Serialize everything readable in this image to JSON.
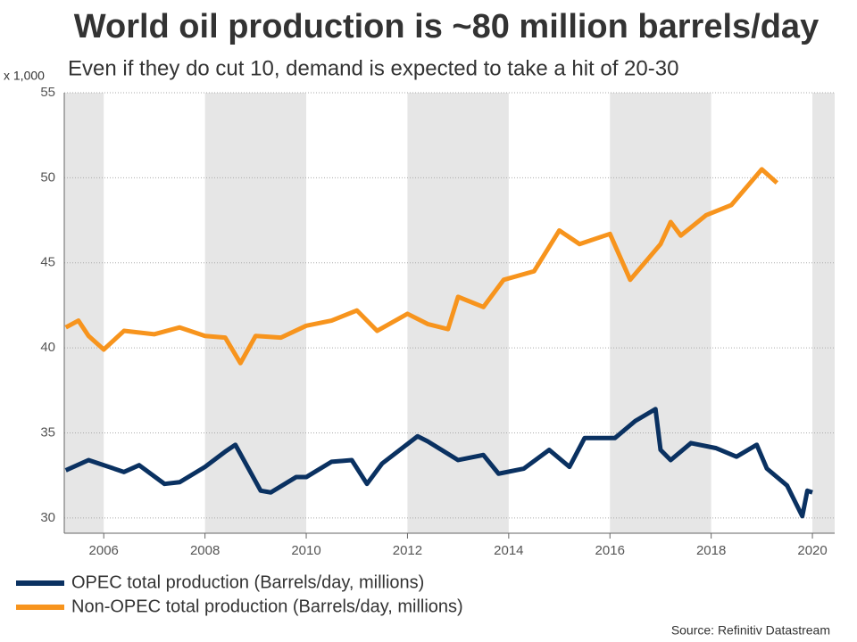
{
  "chart_data": {
    "type": "line",
    "title": "World oil production is ~80 million barrels/day",
    "subtitle": "Even if they do cut 10, demand is expected to take a hit of 20-30",
    "y_unit_label": "x 1,000",
    "source": "Source: Refinitiv Datastream",
    "xlim": [
      2005.22,
      2020.44
    ],
    "xticks": [
      2006,
      2008,
      2010,
      2012,
      2014,
      2016,
      2018,
      2020
    ],
    "ylim": [
      29.1,
      55
    ],
    "yticks": [
      30,
      35,
      40,
      45,
      50,
      55
    ],
    "grid": true,
    "legend": "bottom",
    "series": [
      {
        "name": "OPEC total production (Barrels/day, millions)",
        "color": "#0a3161",
        "x": [
          2005.25,
          2005.7,
          2006.4,
          2006.7,
          2007.2,
          2007.5,
          2008.0,
          2008.4,
          2008.6,
          2009.1,
          2009.3,
          2009.8,
          2010.0,
          2010.5,
          2010.9,
          2011.2,
          2011.5,
          2012.2,
          2012.4,
          2013.0,
          2013.5,
          2013.8,
          2014.3,
          2014.8,
          2015.2,
          2015.5,
          2016.1,
          2016.5,
          2016.9,
          2017.0,
          2017.2,
          2017.6,
          2018.1,
          2018.5,
          2018.9,
          2019.1,
          2019.5,
          2019.8,
          2019.9,
          2020.0
        ],
        "values": [
          32.8,
          33.4,
          32.7,
          33.1,
          32.0,
          32.1,
          33.0,
          33.9,
          34.3,
          31.6,
          31.5,
          32.4,
          32.4,
          33.3,
          33.4,
          32.0,
          33.2,
          34.8,
          34.5,
          33.4,
          33.7,
          32.6,
          32.9,
          34.0,
          33.0,
          34.7,
          34.7,
          35.7,
          36.4,
          34.0,
          33.4,
          34.4,
          34.1,
          33.6,
          34.3,
          32.9,
          31.9,
          30.1,
          31.6,
          31.5
        ]
      },
      {
        "name": "Non-OPEC total production (Barrels/day, millions)",
        "color": "#f7941d",
        "x": [
          2005.25,
          2005.5,
          2005.7,
          2006.0,
          2006.4,
          2007.0,
          2007.5,
          2008.0,
          2008.4,
          2008.7,
          2009.0,
          2009.5,
          2010.0,
          2010.5,
          2011.0,
          2011.4,
          2012.0,
          2012.4,
          2012.8,
          2013.0,
          2013.5,
          2013.9,
          2014.5,
          2015.0,
          2015.4,
          2016.0,
          2016.4,
          2017.0,
          2017.2,
          2017.4,
          2017.9,
          2018.4,
          2019.0,
          2019.3
        ],
        "values": [
          41.2,
          41.6,
          40.7,
          39.9,
          41.0,
          40.8,
          41.2,
          40.7,
          40.6,
          39.1,
          40.7,
          40.6,
          41.3,
          41.6,
          42.2,
          41.0,
          42.0,
          41.4,
          41.1,
          43.0,
          42.4,
          44.0,
          44.5,
          46.9,
          46.1,
          46.7,
          44.0,
          46.1,
          47.4,
          46.6,
          47.8,
          48.4,
          50.5,
          49.7
        ]
      }
    ]
  }
}
